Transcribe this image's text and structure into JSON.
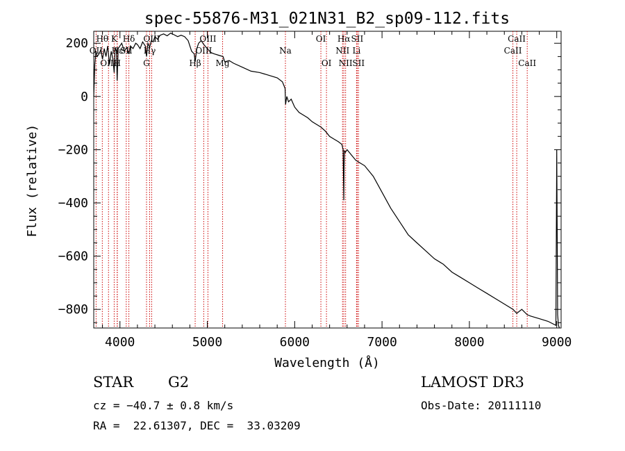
{
  "chart_data": {
    "type": "line",
    "title": "spec-55876-M31_021N31_B2_sp09-112.fits",
    "xlabel": "Wavelength (Å)",
    "ylabel": "Flux (relative)",
    "xlim": [
      3700,
      9050
    ],
    "ylim": [
      -870,
      245
    ],
    "xticks": [
      4000,
      5000,
      6000,
      7000,
      8000,
      9000
    ],
    "yticks": [
      200,
      0,
      -200,
      -400,
      -600,
      -800
    ],
    "tick_labels_x": [
      "4000",
      "5000",
      "6000",
      "7000",
      "8000",
      "9000"
    ],
    "tick_labels_y": [
      "200",
      "0",
      "−200",
      "−400",
      "−600",
      "−800"
    ],
    "series": [
      {
        "name": "spectrum",
        "x": [
          3700,
          3712,
          3725,
          3740,
          3760,
          3780,
          3800,
          3820,
          3840,
          3860,
          3880,
          3900,
          3920,
          3934,
          3945,
          3960,
          3968,
          3980,
          4000,
          4020,
          4050,
          4080,
          4102,
          4120,
          4150,
          4180,
          4200,
          4230,
          4260,
          4290,
          4304,
          4320,
          4340,
          4360,
          4380,
          4400,
          4430,
          4460,
          4500,
          4540,
          4580,
          4620,
          4660,
          4700,
          4740,
          4780,
          4820,
          4850,
          4861,
          4880,
          4900,
          4930,
          4960,
          5000,
          5040,
          5080,
          5130,
          5180,
          5200,
          5250,
          5300,
          5400,
          5500,
          5600,
          5700,
          5800,
          5860,
          5890,
          5896,
          5910,
          5930,
          5960,
          6000,
          6050,
          6100,
          6150,
          6200,
          6250,
          6300,
          6350,
          6400,
          6450,
          6500,
          6540,
          6555,
          6563,
          6566,
          6570,
          6580,
          6600,
          6650,
          6700,
          6750,
          6800,
          6850,
          6900,
          6950,
          7000,
          7100,
          7200,
          7300,
          7400,
          7500,
          7600,
          7700,
          7800,
          7900,
          8000,
          8100,
          8200,
          8300,
          8400,
          8500,
          8542,
          8600,
          8662,
          8700,
          8800,
          8900,
          8990,
          9000,
          9010,
          9020,
          9030
        ],
        "y": [
          0,
          120,
          170,
          150,
          160,
          175,
          140,
          180,
          150,
          190,
          120,
          170,
          140,
          90,
          185,
          170,
          60,
          180,
          190,
          200,
          170,
          185,
          160,
          190,
          180,
          200,
          195,
          180,
          205,
          190,
          150,
          200,
          185,
          210,
          205,
          225,
          215,
          230,
          235,
          228,
          238,
          232,
          225,
          230,
          225,
          210,
          170,
          160,
          130,
          180,
          200,
          210,
          195,
          180,
          165,
          160,
          155,
          150,
          130,
          135,
          125,
          110,
          95,
          90,
          80,
          70,
          55,
          30,
          -30,
          0,
          -20,
          -10,
          -40,
          -60,
          -70,
          -80,
          -95,
          -105,
          -115,
          -130,
          -150,
          -160,
          -170,
          -180,
          -200,
          -390,
          -260,
          -205,
          -210,
          -200,
          -220,
          -240,
          -250,
          -260,
          -280,
          -300,
          -330,
          -360,
          -420,
          -470,
          -520,
          -550,
          -580,
          -610,
          -630,
          -660,
          -680,
          -700,
          -720,
          -740,
          -760,
          -780,
          -800,
          -815,
          -800,
          -820,
          -825,
          -835,
          -845,
          -860,
          -200,
          -820,
          -860,
          -870
        ]
      }
    ],
    "lines": [
      {
        "name": "Hθ",
        "wl": 3798,
        "row": 0
      },
      {
        "name": "OII",
        "wl": 3727,
        "row": 1
      },
      {
        "name": "K",
        "wl": 3934,
        "row": 0
      },
      {
        "name": "Hε",
        "wl": 3970,
        "row": 1
      },
      {
        "name": "H",
        "wl": 3968,
        "row": 2
      },
      {
        "name": "OIII",
        "wl": 3869,
        "row": 2
      },
      {
        "name": "SII",
        "wl": 4072,
        "row": 1
      },
      {
        "name": "Hδ",
        "wl": 4102,
        "row": 0
      },
      {
        "name": "G",
        "wl": 4304,
        "row": 2
      },
      {
        "name": "Hγ",
        "wl": 4340,
        "row": 1
      },
      {
        "name": "OIII",
        "wl": 4363,
        "row": 0
      },
      {
        "name": "Hβ",
        "wl": 4861,
        "row": 2
      },
      {
        "name": "OIII",
        "wl": 4959,
        "row": 1
      },
      {
        "name": "OIII",
        "wl": 5007,
        "row": 0
      },
      {
        "name": "Mg",
        "wl": 5175,
        "row": 2
      },
      {
        "name": "Na",
        "wl": 5894,
        "row": 1
      },
      {
        "name": "OI",
        "wl": 6300,
        "row": 0
      },
      {
        "name": "OI",
        "wl": 6364,
        "row": 2
      },
      {
        "name": "NII",
        "wl": 6548,
        "row": 1
      },
      {
        "name": "Hα",
        "wl": 6563,
        "row": 0
      },
      {
        "name": "NII",
        "wl": 6583,
        "row": 2
      },
      {
        "name": "Li",
        "wl": 6708,
        "row": 1
      },
      {
        "name": "SII",
        "wl": 6716,
        "row": 0
      },
      {
        "name": "SII",
        "wl": 6731,
        "row": 2
      },
      {
        "name": "CaII",
        "wl": 8498,
        "row": 1
      },
      {
        "name": "CaII",
        "wl": 8542,
        "row": 0
      },
      {
        "name": "CaII",
        "wl": 8662,
        "row": 2
      }
    ],
    "line_color": "#cc0000"
  },
  "info": {
    "class": "STAR",
    "subclass": "G2",
    "survey": "LAMOST DR3",
    "cz": "cz = −40.7 ± 0.8 km/s",
    "obs_date": "Obs-Date: 20111110",
    "radec": "RA =  22.61307, DEC =  33.03209"
  }
}
